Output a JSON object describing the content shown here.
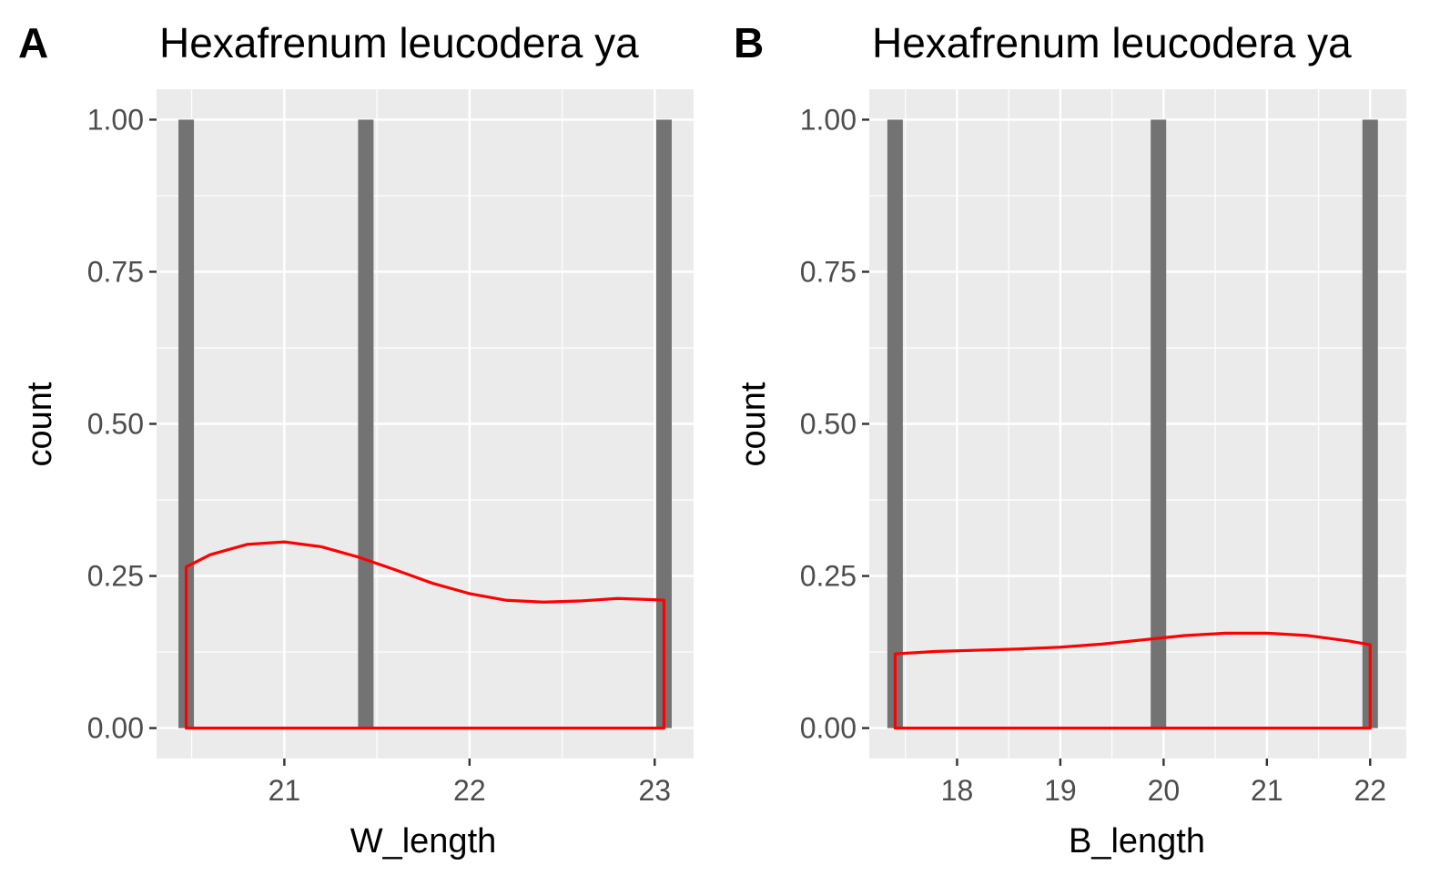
{
  "chart_data": [
    {
      "type": "bar",
      "tag": "A",
      "title": "Hexafrenum leucodera ya",
      "xlabel": "W_length",
      "ylabel": "count",
      "xlim": [
        20.31,
        23.21
      ],
      "ylim": [
        -0.05,
        1.05
      ],
      "xticks": [
        21,
        22,
        23
      ],
      "yticks": [
        0.0,
        0.25,
        0.5,
        0.75,
        1.0
      ],
      "ytick_labels": [
        "0.00",
        "0.25",
        "0.50",
        "0.75",
        "1.00"
      ],
      "bar_color": "#737373",
      "density_color": "#ff0000",
      "panel_background": "#ebebeb",
      "bars": [
        {
          "x": 20.47,
          "count": 1
        },
        {
          "x": 21.44,
          "count": 1
        },
        {
          "x": 23.05,
          "count": 1
        }
      ],
      "density": {
        "x": [
          20.47,
          20.6,
          20.8,
          21.0,
          21.2,
          21.4,
          21.6,
          21.8,
          22.0,
          22.2,
          22.4,
          22.6,
          22.8,
          23.0,
          23.05
        ],
        "y": [
          0.265,
          0.285,
          0.302,
          0.306,
          0.298,
          0.281,
          0.26,
          0.238,
          0.221,
          0.21,
          0.207,
          0.209,
          0.213,
          0.211,
          0.21
        ]
      },
      "grid": true
    },
    {
      "type": "bar",
      "tag": "B",
      "title": "Hexafrenum leucodera ya",
      "xlabel": "B_length",
      "ylabel": "count",
      "xlim": [
        17.15,
        22.35
      ],
      "ylim": [
        -0.05,
        1.05
      ],
      "xticks": [
        18,
        19,
        20,
        21,
        22
      ],
      "yticks": [
        0.0,
        0.25,
        0.5,
        0.75,
        1.0
      ],
      "ytick_labels": [
        "0.00",
        "0.25",
        "0.50",
        "0.75",
        "1.00"
      ],
      "bar_color": "#737373",
      "density_color": "#ff0000",
      "panel_background": "#ebebeb",
      "bars": [
        {
          "x": 17.4,
          "count": 1
        },
        {
          "x": 19.95,
          "count": 1
        },
        {
          "x": 22.0,
          "count": 1
        }
      ],
      "density": {
        "x": [
          17.4,
          17.8,
          18.2,
          18.6,
          19.0,
          19.4,
          19.8,
          20.2,
          20.6,
          21.0,
          21.4,
          21.8,
          22.0
        ],
        "y": [
          0.122,
          0.126,
          0.128,
          0.13,
          0.133,
          0.138,
          0.145,
          0.152,
          0.156,
          0.156,
          0.152,
          0.143,
          0.137
        ]
      },
      "grid": true
    }
  ]
}
